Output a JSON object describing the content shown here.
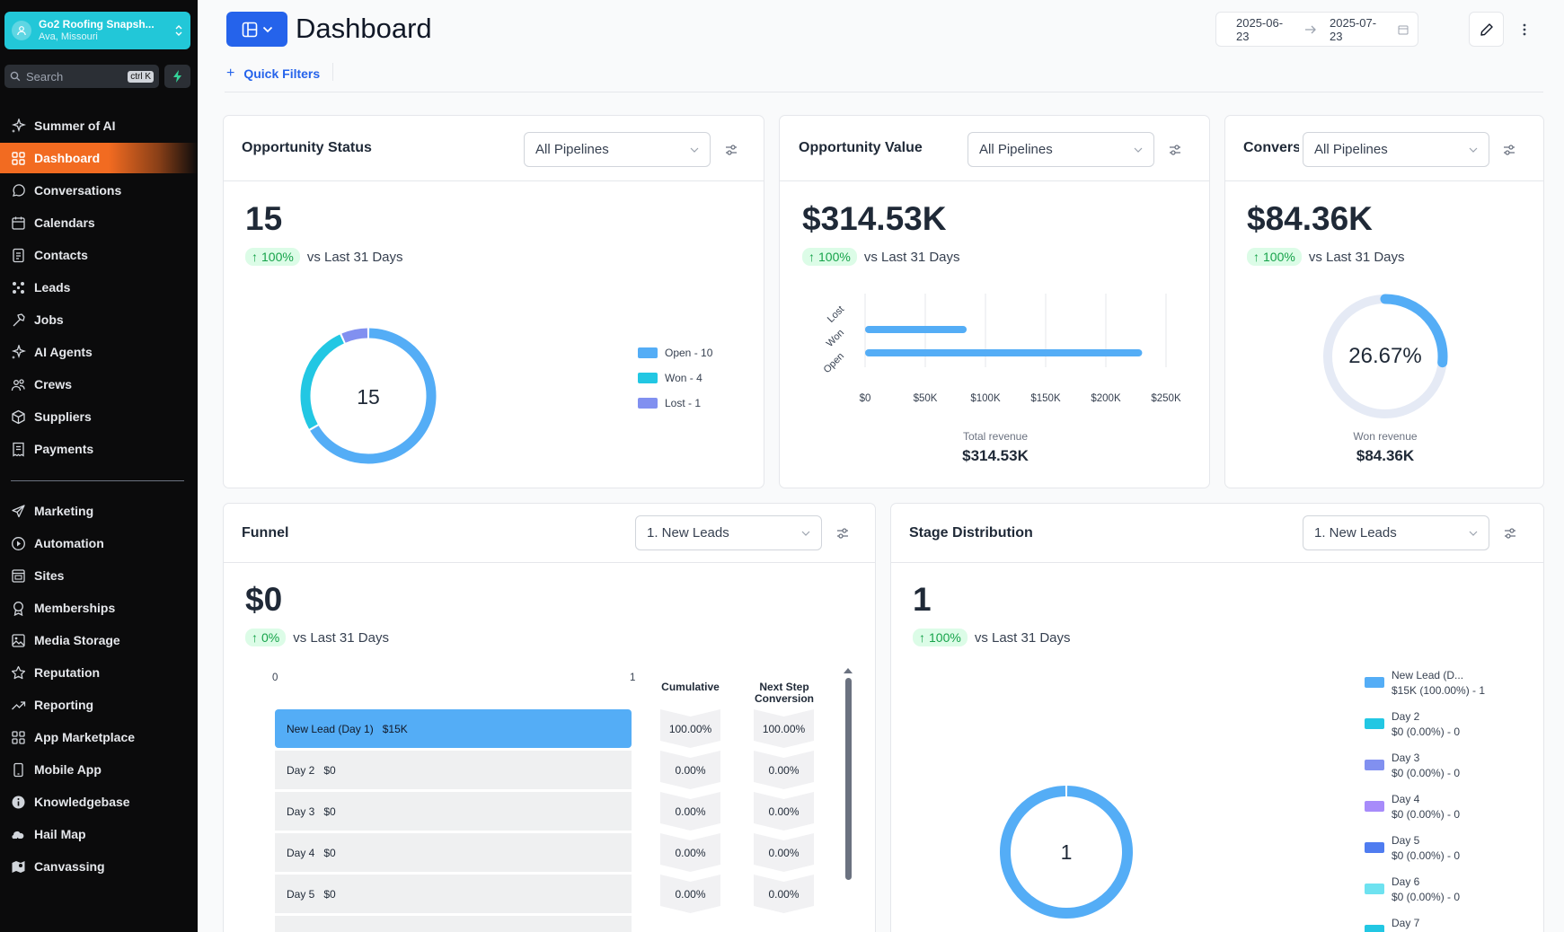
{
  "account": {
    "name": "Go2 Roofing Snapsh...",
    "location": "Ava, Missouri"
  },
  "search": {
    "placeholder": "Search",
    "shortcut": "ctrl K"
  },
  "sidebar": {
    "items": [
      {
        "label": "Summer of AI",
        "icon": "sparkle-icon"
      },
      {
        "label": "Dashboard",
        "icon": "grid-icon",
        "active": true
      },
      {
        "label": "Conversations",
        "icon": "chat-icon"
      },
      {
        "label": "Calendars",
        "icon": "calendar-icon"
      },
      {
        "label": "Contacts",
        "icon": "contacts-icon"
      },
      {
        "label": "Leads",
        "icon": "leads-icon"
      },
      {
        "label": "Jobs",
        "icon": "hammer-icon"
      },
      {
        "label": "AI Agents",
        "icon": "sparkle-icon"
      },
      {
        "label": "Crews",
        "icon": "users-icon"
      },
      {
        "label": "Suppliers",
        "icon": "box-icon"
      },
      {
        "label": "Payments",
        "icon": "receipt-icon"
      }
    ],
    "items2": [
      {
        "label": "Marketing",
        "icon": "send-icon"
      },
      {
        "label": "Automation",
        "icon": "play-icon"
      },
      {
        "label": "Sites",
        "icon": "browser-icon"
      },
      {
        "label": "Memberships",
        "icon": "award-icon"
      },
      {
        "label": "Media Storage",
        "icon": "image-icon"
      },
      {
        "label": "Reputation",
        "icon": "star-icon"
      },
      {
        "label": "Reporting",
        "icon": "trend-icon"
      },
      {
        "label": "App Marketplace",
        "icon": "apps-icon"
      },
      {
        "label": "Mobile App",
        "icon": "phone-icon"
      },
      {
        "label": "Knowledgebase",
        "icon": "info-icon"
      },
      {
        "label": "Hail Map",
        "icon": "storm-icon"
      },
      {
        "label": "Canvassing",
        "icon": "map-icon"
      }
    ]
  },
  "header": {
    "title": "Dashboard",
    "quick_filters": "Quick Filters",
    "date_start": "2025-06-23",
    "date_end": "2025-07-23"
  },
  "colors": {
    "blue": "#54adf6",
    "cyan": "#22c7e3",
    "indigo": "#8190f0",
    "purple": "#a78bfa",
    "royal": "#4f7cf0",
    "aqua": "#6ee2f0",
    "accent": "#f26b21"
  },
  "cards": {
    "status": {
      "title": "Opportunity Status",
      "select": "All Pipelines",
      "value": "15",
      "delta": "100%",
      "compare": "vs Last 31 Days",
      "center": "15",
      "legend": [
        {
          "label": "Open - 10",
          "color": "#54adf6"
        },
        {
          "label": "Won - 4",
          "color": "#22c7e3"
        },
        {
          "label": "Lost - 1",
          "color": "#8190f0"
        }
      ]
    },
    "value": {
      "title": "Opportunity Value",
      "select": "All Pipelines",
      "value": "$314.53K",
      "delta": "100%",
      "compare": "vs Last 31 Days",
      "caption": "Total revenue",
      "caption_value": "$314.53K"
    },
    "conversion": {
      "title": "Conversion",
      "select": "All Pipelines",
      "value": "$84.36K",
      "delta": "100%",
      "compare": "vs Last 31 Days",
      "center": "26.67%",
      "caption": "Won revenue",
      "caption_value": "$84.36K"
    },
    "funnel": {
      "title": "Funnel",
      "select": "1. New Leads",
      "value": "$0",
      "delta": "0%",
      "compare": "vs Last 31 Days",
      "axis_min": "0",
      "axis_max": "1",
      "col_cumulative": "Cumulative",
      "col_next": "Next Step Conversion",
      "rows": [
        {
          "stage": "New Lead (Day 1)",
          "amount": "$15K",
          "cumulative": "100.00%",
          "next": "100.00%"
        },
        {
          "stage": "Day 2",
          "amount": "$0",
          "cumulative": "0.00%",
          "next": "0.00%"
        },
        {
          "stage": "Day 3",
          "amount": "$0",
          "cumulative": "0.00%",
          "next": "0.00%"
        },
        {
          "stage": "Day 4",
          "amount": "$0",
          "cumulative": "0.00%",
          "next": "0.00%"
        },
        {
          "stage": "Day 5",
          "amount": "$0",
          "cumulative": "0.00%",
          "next": "0.00%"
        }
      ]
    },
    "stage": {
      "title": "Stage Distribution",
      "select": "1. New Leads",
      "value": "1",
      "delta": "100%",
      "compare": "vs Last 31 Days",
      "center": "1",
      "legend": [
        {
          "name": "New Lead (D...",
          "detail": "$15K (100.00%) - 1",
          "color": "#54adf6"
        },
        {
          "name": "Day 2",
          "detail": "$0 (0.00%) - 0",
          "color": "#22c7e3"
        },
        {
          "name": "Day 3",
          "detail": "$0 (0.00%) - 0",
          "color": "#8190f0"
        },
        {
          "name": "Day 4",
          "detail": "$0 (0.00%) - 0",
          "color": "#a78bfa"
        },
        {
          "name": "Day 5",
          "detail": "$0 (0.00%) - 0",
          "color": "#4f7cf0"
        },
        {
          "name": "Day 6",
          "detail": "$0 (0.00%) - 0",
          "color": "#6ee2f0"
        },
        {
          "name": "Day 7",
          "detail": "",
          "color": "#22c7e3"
        }
      ]
    }
  },
  "chart_data": [
    {
      "type": "pie",
      "title": "",
      "categories": [
        "Open",
        "Won",
        "Lost"
      ],
      "values": [
        10,
        4,
        1
      ]
    },
    {
      "type": "bar",
      "orientation": "horizontal",
      "categories": [
        "Lost",
        "Won",
        "Open"
      ],
      "values": [
        0,
        84360,
        230170
      ],
      "xlabel": "Total revenue",
      "xlim": [
        0,
        250000
      ],
      "xticks": [
        "$0",
        "$50K",
        "$100K",
        "$150K",
        "$200K",
        "$250K"
      ]
    },
    {
      "type": "pie",
      "title": "",
      "categories": [
        "Won",
        "Other"
      ],
      "values": [
        26.67,
        73.33
      ]
    },
    {
      "type": "bar",
      "orientation": "horizontal",
      "categories": [
        "New Lead (Day 1)",
        "Day 2",
        "Day 3",
        "Day 4",
        "Day 5"
      ],
      "values": [
        1,
        0,
        0,
        0,
        0
      ],
      "xlim": [
        0,
        1
      ]
    },
    {
      "type": "pie",
      "title": "",
      "categories": [
        "New Lead (D...",
        "Day 2",
        "Day 3",
        "Day 4",
        "Day 5",
        "Day 6",
        "Day 7"
      ],
      "values": [
        1,
        0,
        0,
        0,
        0,
        0,
        0
      ]
    }
  ]
}
